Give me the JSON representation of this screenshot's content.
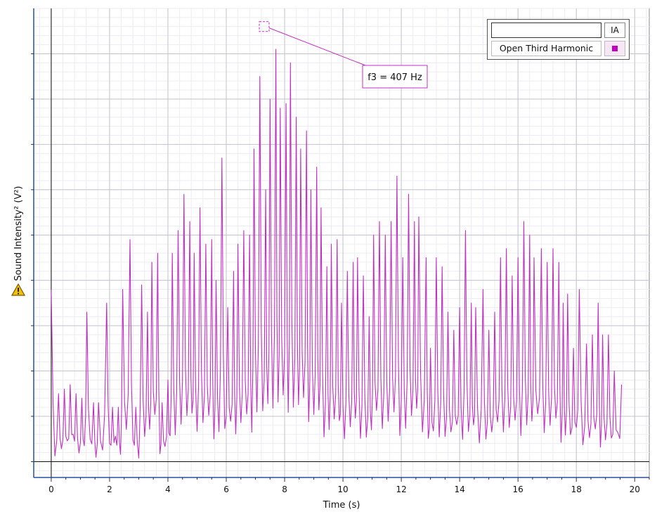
{
  "chart_data": {
    "type": "line",
    "title": "",
    "xlabel": "Time (s)",
    "ylabel": "Sound Intensity² (V²)",
    "xlim": [
      -0.6,
      20.5
    ],
    "ylim": [
      -0.35,
      10.0
    ],
    "x_ticks": [
      0,
      2,
      4,
      6,
      8,
      10,
      12,
      14,
      16,
      18,
      20
    ],
    "x_tick_labels": [
      "0",
      "2",
      "4",
      "6",
      "8",
      "10",
      "12",
      "14",
      "16",
      "18",
      "20"
    ],
    "y_ticks": [
      0,
      1,
      2,
      3,
      4,
      5,
      6,
      7,
      8,
      9
    ],
    "y_tick_labels": [],
    "grid": true,
    "legend_position": "top-right",
    "series": [
      {
        "name": "Open Third Harmonic",
        "color": "#c030c0",
        "peaks": [
          [
            0.0,
            3.8
          ],
          [
            0.25,
            1.5
          ],
          [
            0.45,
            1.6
          ],
          [
            0.65,
            1.7
          ],
          [
            0.85,
            1.5
          ],
          [
            1.05,
            1.4
          ],
          [
            1.22,
            3.3
          ],
          [
            1.45,
            1.3
          ],
          [
            1.62,
            1.3
          ],
          [
            1.9,
            3.5
          ],
          [
            2.1,
            1.2
          ],
          [
            2.3,
            1.2
          ],
          [
            2.45,
            3.8
          ],
          [
            2.7,
            4.9
          ],
          [
            2.9,
            1.2
          ],
          [
            3.1,
            3.9
          ],
          [
            3.3,
            3.3
          ],
          [
            3.45,
            4.4
          ],
          [
            3.65,
            4.6
          ],
          [
            3.8,
            1.3
          ],
          [
            4.0,
            1.8
          ],
          [
            4.15,
            4.6
          ],
          [
            4.35,
            5.1
          ],
          [
            4.55,
            5.9
          ],
          [
            4.75,
            5.3
          ],
          [
            4.9,
            4.6
          ],
          [
            5.1,
            5.6
          ],
          [
            5.3,
            4.8
          ],
          [
            5.5,
            4.9
          ],
          [
            5.65,
            4.0
          ],
          [
            5.85,
            6.7
          ],
          [
            6.05,
            3.4
          ],
          [
            6.25,
            4.2
          ],
          [
            6.4,
            4.8
          ],
          [
            6.6,
            5.1
          ],
          [
            6.8,
            5.0
          ],
          [
            6.95,
            6.9
          ],
          [
            7.15,
            8.5
          ],
          [
            7.35,
            6.0
          ],
          [
            7.5,
            8.0
          ],
          [
            7.7,
            9.1
          ],
          [
            7.85,
            7.8
          ],
          [
            8.05,
            7.9
          ],
          [
            8.2,
            8.8
          ],
          [
            8.4,
            7.6
          ],
          [
            8.55,
            6.9
          ],
          [
            8.75,
            7.3
          ],
          [
            8.9,
            6.0
          ],
          [
            9.1,
            6.5
          ],
          [
            9.25,
            5.6
          ],
          [
            9.45,
            4.3
          ],
          [
            9.6,
            4.8
          ],
          [
            9.8,
            4.9
          ],
          [
            9.95,
            3.5
          ],
          [
            10.15,
            4.2
          ],
          [
            10.35,
            4.4
          ],
          [
            10.5,
            4.5
          ],
          [
            10.7,
            4.1
          ],
          [
            10.9,
            3.2
          ],
          [
            11.05,
            5.0
          ],
          [
            11.25,
            5.3
          ],
          [
            11.45,
            5.0
          ],
          [
            11.65,
            5.3
          ],
          [
            11.85,
            6.3
          ],
          [
            12.05,
            4.5
          ],
          [
            12.25,
            5.9
          ],
          [
            12.45,
            5.3
          ],
          [
            12.6,
            5.4
          ],
          [
            12.85,
            4.5
          ],
          [
            13.0,
            2.5
          ],
          [
            13.2,
            4.5
          ],
          [
            13.4,
            4.3
          ],
          [
            13.6,
            3.3
          ],
          [
            13.8,
            2.9
          ],
          [
            14.0,
            3.4
          ],
          [
            14.2,
            5.1
          ],
          [
            14.4,
            3.5
          ],
          [
            14.55,
            3.4
          ],
          [
            14.8,
            3.8
          ],
          [
            15.0,
            2.9
          ],
          [
            15.2,
            3.3
          ],
          [
            15.4,
            4.5
          ],
          [
            15.6,
            4.7
          ],
          [
            15.8,
            4.1
          ],
          [
            16.0,
            4.5
          ],
          [
            16.2,
            5.3
          ],
          [
            16.4,
            5.0
          ],
          [
            16.55,
            4.5
          ],
          [
            16.8,
            4.7
          ],
          [
            17.0,
            4.4
          ],
          [
            17.2,
            4.7
          ],
          [
            17.4,
            4.4
          ],
          [
            17.55,
            3.5
          ],
          [
            17.7,
            3.7
          ],
          [
            17.9,
            2.5
          ],
          [
            18.1,
            3.8
          ],
          [
            18.35,
            2.6
          ],
          [
            18.55,
            2.8
          ],
          [
            18.75,
            3.5
          ],
          [
            18.9,
            2.8
          ],
          [
            19.1,
            2.8
          ],
          [
            19.3,
            2.0
          ],
          [
            19.55,
            1.7
          ]
        ]
      }
    ],
    "annotation": {
      "text": "f3 = 407 Hz",
      "x": 7.3,
      "y": 9.6
    }
  },
  "legend": {
    "header_label": "IA",
    "series_label": "Open Third Harmonic",
    "series_color": "#c000c0"
  },
  "warning_icon": "warning-triangle-icon"
}
